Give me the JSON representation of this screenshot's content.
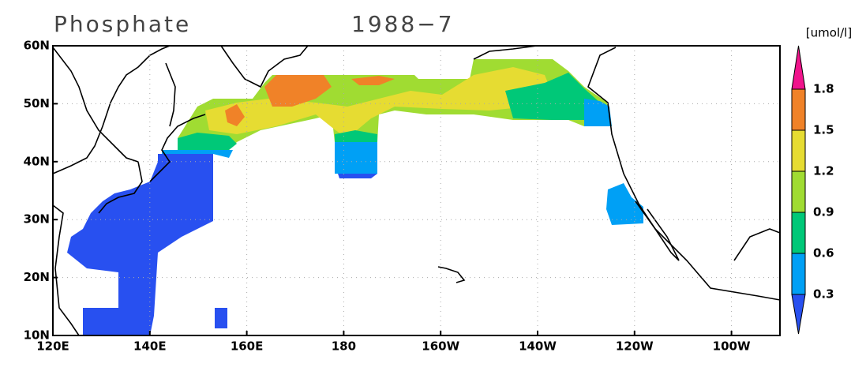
{
  "title": "Phosphate",
  "date": "1988−7",
  "unit": "[umol/l]",
  "lon_range": [
    120,
    270
  ],
  "lat_range": [
    10,
    60
  ],
  "lon_ticks": [
    {
      "value": 120,
      "label": "120E"
    },
    {
      "value": 140,
      "label": "140E"
    },
    {
      "value": 160,
      "label": "160E"
    },
    {
      "value": 180,
      "label": "180"
    },
    {
      "value": 200,
      "label": "160W"
    },
    {
      "value": 220,
      "label": "140W"
    },
    {
      "value": 240,
      "label": "120W"
    },
    {
      "value": 260,
      "label": "100W"
    }
  ],
  "lat_ticks": [
    {
      "value": 10,
      "label": "10N"
    },
    {
      "value": 20,
      "label": "20N"
    },
    {
      "value": 30,
      "label": "30N"
    },
    {
      "value": 40,
      "label": "40N"
    },
    {
      "value": 50,
      "label": "50N"
    },
    {
      "value": 60,
      "label": "60N"
    }
  ],
  "grid": true,
  "colorbar": {
    "levels": [
      0.3,
      0.6,
      0.9,
      1.2,
      1.5,
      1.8
    ],
    "colors": [
      "#2850f0",
      "#00a0f5",
      "#00c878",
      "#a0dc32",
      "#e6dc32",
      "#f08228",
      "#f0148c"
    ]
  }
}
